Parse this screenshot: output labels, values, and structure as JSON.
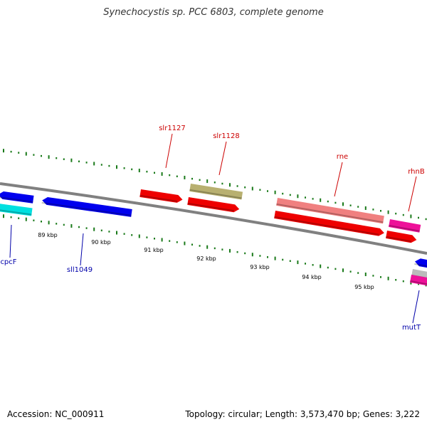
{
  "title": "Synechocystis sp. PCC 6803, complete genome",
  "footer": {
    "accession": "Accession: NC_000911",
    "topology": "Topology: circular; Length: 3,573,470 bp; Genes: 3,222"
  },
  "colors": {
    "backbone": "#808080",
    "tick": "#1a7a1a",
    "label_top": "#cc0000",
    "label_bottom": "#0000aa"
  },
  "kbp_labels": [
    "89 kbp",
    "90 kbp",
    "91 kbp",
    "92 kbp",
    "93 kbp",
    "94 kbp",
    "95 kbp"
  ],
  "gene_labels_top": [
    "slr1127",
    "slr1128",
    "rne",
    "rhnB"
  ],
  "gene_labels_bottom": [
    "cpcF",
    "sll1049",
    "mutT"
  ],
  "features": [
    {
      "strand": "reverse",
      "color": "#0000ee"
    },
    {
      "strand": "reverse",
      "color": "#0000ee"
    },
    {
      "strand": "none",
      "color": "#00e0e0"
    },
    {
      "strand": "forward",
      "color": "#ee0000"
    },
    {
      "strand": "none",
      "color": "#b8b070"
    },
    {
      "strand": "forward",
      "color": "#ee0000"
    },
    {
      "strand": "none",
      "color": "#f08080"
    },
    {
      "strand": "forward",
      "color": "#ee0000"
    },
    {
      "strand": "none",
      "color": "#ee1199"
    },
    {
      "strand": "forward",
      "color": "#ee0000"
    },
    {
      "strand": "reverse",
      "color": "#0000ee"
    },
    {
      "strand": "none",
      "color": "#bbbbbb"
    },
    {
      "strand": "none",
      "color": "#ee1199"
    }
  ]
}
